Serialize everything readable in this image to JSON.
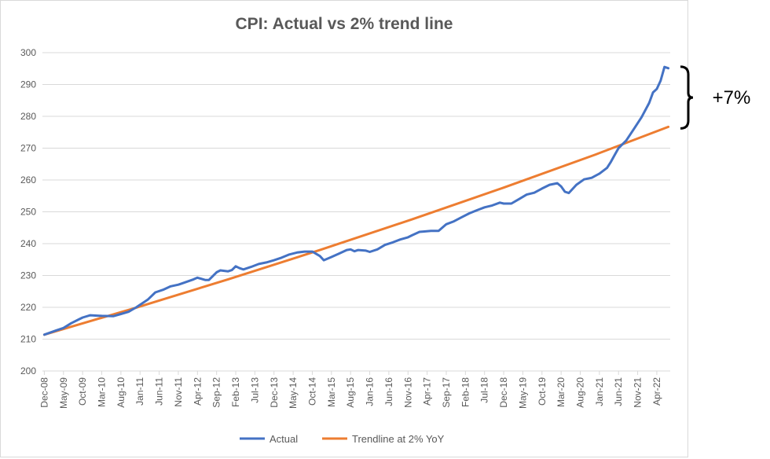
{
  "chart_data": {
    "type": "line",
    "title": "CPI: Actual vs 2% trend line",
    "xlabel": "",
    "ylabel": "",
    "ylim": [
      200,
      300
    ],
    "yticks": [
      200,
      210,
      220,
      230,
      240,
      250,
      260,
      270,
      280,
      290,
      300
    ],
    "grid": true,
    "legend_position": "bottom",
    "x_tick_labels": [
      "Dec-08",
      "May-09",
      "Oct-09",
      "Mar-10",
      "Aug-10",
      "Jan-11",
      "Jun-11",
      "Nov-11",
      "Apr-12",
      "Sep-12",
      "Feb-13",
      "Jul-13",
      "Dec-13",
      "May-14",
      "Oct-14",
      "Mar-15",
      "Aug-15",
      "Jan-16",
      "Jun-16",
      "Nov-16",
      "Apr-17",
      "Sep-17",
      "Feb-18",
      "Jul-18",
      "Dec-18",
      "May-19",
      "Oct-19",
      "Mar-20",
      "Aug-20",
      "Jan-21",
      "Jun-21",
      "Nov-21",
      "Apr-22"
    ],
    "x_start": "2008-12",
    "series": [
      {
        "name": "Actual",
        "color": "#4472c4",
        "points": [
          [
            "2008-12",
            211.4
          ],
          [
            "2009-03",
            212.7
          ],
          [
            "2009-05",
            213.5
          ],
          [
            "2009-07",
            215.0
          ],
          [
            "2009-09",
            216.2
          ],
          [
            "2009-10",
            216.8
          ],
          [
            "2009-12",
            217.5
          ],
          [
            "2010-03",
            217.3
          ],
          [
            "2010-06",
            217.2
          ],
          [
            "2010-08",
            217.9
          ],
          [
            "2010-10",
            218.6
          ],
          [
            "2010-12",
            220.0
          ],
          [
            "2011-03",
            222.4
          ],
          [
            "2011-05",
            224.7
          ],
          [
            "2011-07",
            225.5
          ],
          [
            "2011-09",
            226.6
          ],
          [
            "2011-11",
            227.1
          ],
          [
            "2011-12",
            227.5
          ],
          [
            "2012-03",
            228.8
          ],
          [
            "2012-04",
            229.3
          ],
          [
            "2012-06",
            228.6
          ],
          [
            "2012-07",
            228.6
          ],
          [
            "2012-09",
            231.0
          ],
          [
            "2012-10",
            231.6
          ],
          [
            "2012-12",
            231.3
          ],
          [
            "2013-01",
            231.7
          ],
          [
            "2013-02",
            232.9
          ],
          [
            "2013-03",
            232.3
          ],
          [
            "2013-04",
            231.9
          ],
          [
            "2013-06",
            232.7
          ],
          [
            "2013-08",
            233.6
          ],
          [
            "2013-10",
            234.1
          ],
          [
            "2013-12",
            234.8
          ],
          [
            "2014-02",
            235.6
          ],
          [
            "2014-04",
            236.6
          ],
          [
            "2014-06",
            237.2
          ],
          [
            "2014-08",
            237.5
          ],
          [
            "2014-10",
            237.5
          ],
          [
            "2014-12",
            236.1
          ],
          [
            "2015-01",
            234.8
          ],
          [
            "2015-03",
            235.8
          ],
          [
            "2015-05",
            236.9
          ],
          [
            "2015-07",
            238.0
          ],
          [
            "2015-08",
            238.2
          ],
          [
            "2015-09",
            237.6
          ],
          [
            "2015-10",
            238.0
          ],
          [
            "2015-12",
            237.8
          ],
          [
            "2016-01",
            237.4
          ],
          [
            "2016-03",
            238.2
          ],
          [
            "2016-05",
            239.6
          ],
          [
            "2016-07",
            240.4
          ],
          [
            "2016-09",
            241.3
          ],
          [
            "2016-11",
            242.0
          ],
          [
            "2016-12",
            242.6
          ],
          [
            "2017-02",
            243.7
          ],
          [
            "2017-03",
            243.8
          ],
          [
            "2017-05",
            244.0
          ],
          [
            "2017-07",
            244.0
          ],
          [
            "2017-09",
            246.1
          ],
          [
            "2017-11",
            247.0
          ],
          [
            "2018-01",
            248.3
          ],
          [
            "2018-03",
            249.5
          ],
          [
            "2018-05",
            250.5
          ],
          [
            "2018-07",
            251.4
          ],
          [
            "2018-09",
            252.0
          ],
          [
            "2018-11",
            252.9
          ],
          [
            "2018-12",
            252.6
          ],
          [
            "2019-02",
            252.6
          ],
          [
            "2019-04",
            254.0
          ],
          [
            "2019-06",
            255.4
          ],
          [
            "2019-08",
            256.0
          ],
          [
            "2019-10",
            257.3
          ],
          [
            "2019-12",
            258.5
          ],
          [
            "2020-02",
            259.0
          ],
          [
            "2020-03",
            258.0
          ],
          [
            "2020-04",
            256.3
          ],
          [
            "2020-05",
            255.9
          ],
          [
            "2020-07",
            258.5
          ],
          [
            "2020-09",
            260.2
          ],
          [
            "2020-11",
            260.7
          ],
          [
            "2021-01",
            262.0
          ],
          [
            "2021-03",
            263.8
          ],
          [
            "2021-04",
            265.7
          ],
          [
            "2021-05",
            267.9
          ],
          [
            "2021-06",
            270.0
          ],
          [
            "2021-08",
            272.4
          ],
          [
            "2021-10",
            276.0
          ],
          [
            "2021-12",
            279.7
          ],
          [
            "2022-02",
            284.2
          ],
          [
            "2022-03",
            287.5
          ],
          [
            "2022-04",
            288.6
          ],
          [
            "2022-05",
            291.2
          ],
          [
            "2022-06",
            295.5
          ],
          [
            "2022-07",
            295.1
          ]
        ]
      },
      {
        "name": "Trendline at 2% YoY",
        "color": "#ed7d31",
        "points": [
          [
            "2008-12",
            211.4
          ],
          [
            "2010-12",
            219.9
          ],
          [
            "2012-12",
            228.8
          ],
          [
            "2014-12",
            238.0
          ],
          [
            "2016-12",
            247.6
          ],
          [
            "2018-12",
            257.6
          ],
          [
            "2020-12",
            268.0
          ],
          [
            "2022-07",
            276.7
          ]
        ]
      }
    ],
    "annotations": [
      {
        "text": "+7%",
        "between": [
          276.7,
          295.1
        ]
      }
    ]
  }
}
